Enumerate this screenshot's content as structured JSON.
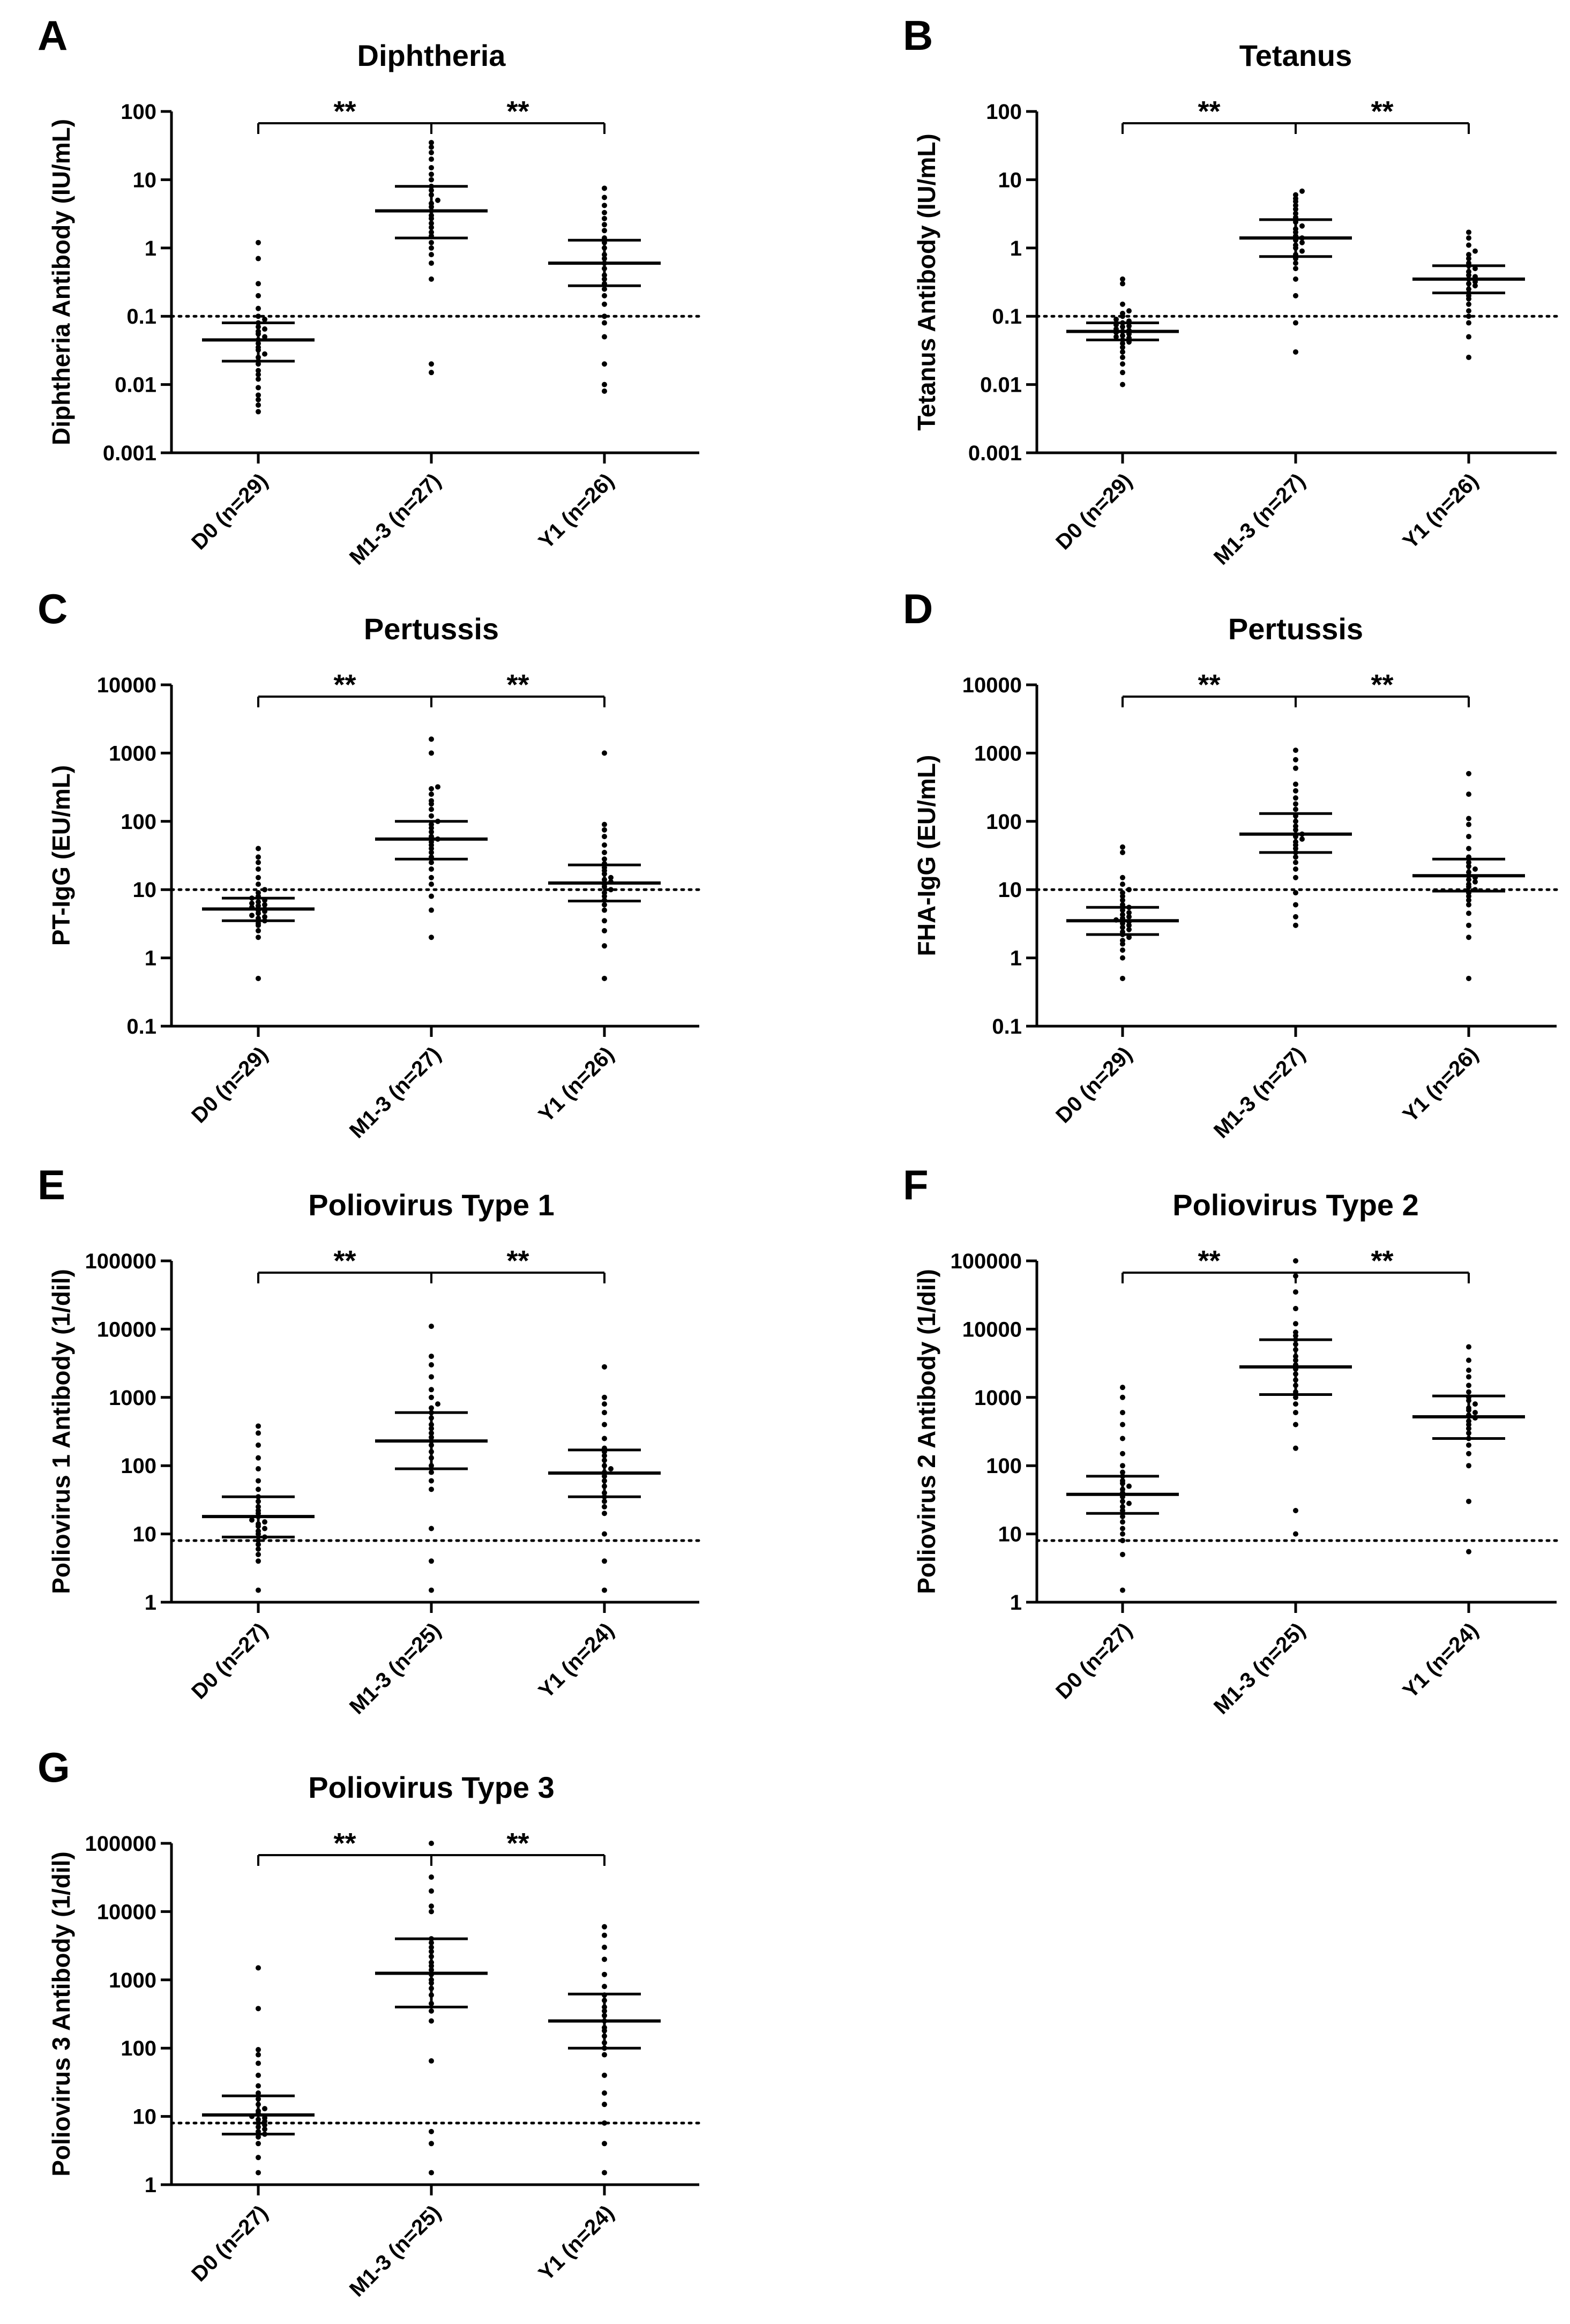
{
  "chart_data": [
    {
      "panel": "A",
      "type": "scatter",
      "title": "Diphtheria",
      "ylabel": "Diphtheria Antibody (IU/mL)",
      "yscale": "log",
      "ylim": [
        0.001,
        100
      ],
      "yticks": [
        "0.001",
        "0.01",
        "0.1",
        "1",
        "10",
        "100"
      ],
      "reference_line": 0.1,
      "categories": [
        "D0 (n=29)",
        "M1-3 (n=27)",
        "Y1 (n=26)"
      ],
      "groups": [
        {
          "mean": 0.045,
          "ci": [
            0.022,
            0.08
          ],
          "points": [
            0.004,
            0.005,
            0.006,
            0.007,
            0.009,
            0.012,
            0.014,
            0.016,
            0.02,
            0.022,
            0.025,
            0.028,
            0.032,
            0.035,
            0.04,
            0.045,
            0.05,
            0.055,
            0.06,
            0.065,
            0.07,
            0.08,
            0.09,
            0.1,
            0.13,
            0.2,
            0.3,
            0.7,
            1.2
          ]
        },
        {
          "mean": 3.5,
          "ci": [
            1.4,
            8
          ],
          "points": [
            0.015,
            0.02,
            0.35,
            0.6,
            0.8,
            1.0,
            1.2,
            1.5,
            1.7,
            2.0,
            2.3,
            2.7,
            3.0,
            3.5,
            4.0,
            4.5,
            5.0,
            6.0,
            7.0,
            8.0,
            10,
            12,
            15,
            20,
            25,
            30,
            35
          ]
        },
        {
          "mean": 0.6,
          "ci": [
            0.28,
            1.3
          ],
          "points": [
            0.008,
            0.01,
            0.02,
            0.05,
            0.08,
            0.1,
            0.15,
            0.2,
            0.25,
            0.3,
            0.35,
            0.4,
            0.5,
            0.6,
            0.7,
            0.8,
            1.0,
            1.2,
            1.4,
            1.8,
            2.2,
            2.7,
            3.3,
            4.2,
            5.5,
            7.5
          ]
        }
      ],
      "significance": [
        "**",
        "**"
      ]
    },
    {
      "panel": "B",
      "type": "scatter",
      "title": "Tetanus",
      "ylabel": "Tetanus Antibody (IU/mL)",
      "yscale": "log",
      "ylim": [
        0.001,
        100
      ],
      "yticks": [
        "0.001",
        "0.01",
        "0.1",
        "1",
        "10",
        "100"
      ],
      "reference_line": 0.1,
      "categories": [
        "D0 (n=29)",
        "M1-3 (n=27)",
        "Y1 (n=26)"
      ],
      "groups": [
        {
          "mean": 0.06,
          "ci": [
            0.045,
            0.08
          ],
          "points": [
            0.01,
            0.015,
            0.02,
            0.025,
            0.03,
            0.035,
            0.04,
            0.042,
            0.045,
            0.048,
            0.05,
            0.052,
            0.055,
            0.058,
            0.06,
            0.062,
            0.065,
            0.07,
            0.072,
            0.075,
            0.08,
            0.085,
            0.09,
            0.1,
            0.11,
            0.12,
            0.15,
            0.3,
            0.35
          ]
        },
        {
          "mean": 1.4,
          "ci": [
            0.75,
            2.6
          ],
          "points": [
            0.03,
            0.08,
            0.2,
            0.35,
            0.5,
            0.6,
            0.7,
            0.8,
            0.9,
            1.0,
            1.1,
            1.2,
            1.3,
            1.4,
            1.5,
            1.7,
            1.9,
            2.1,
            2.4,
            2.8,
            3.2,
            3.7,
            4.2,
            4.8,
            5.3,
            6.0,
            6.8
          ]
        },
        {
          "mean": 0.35,
          "ci": [
            0.22,
            0.55
          ],
          "points": [
            0.025,
            0.05,
            0.08,
            0.1,
            0.12,
            0.15,
            0.18,
            0.2,
            0.22,
            0.25,
            0.28,
            0.3,
            0.32,
            0.35,
            0.38,
            0.4,
            0.45,
            0.5,
            0.55,
            0.6,
            0.7,
            0.8,
            0.9,
            1.1,
            1.4,
            1.7
          ]
        }
      ],
      "significance": [
        "**",
        "**"
      ]
    },
    {
      "panel": "C",
      "type": "scatter",
      "title": "Pertussis",
      "ylabel": "PT-IgG (EU/mL)",
      "yscale": "log",
      "ylim": [
        0.1,
        10000
      ],
      "yticks": [
        "0.1",
        "1",
        "10",
        "100",
        "1000",
        "10000"
      ],
      "reference_line": 10,
      "categories": [
        "D0 (n=29)",
        "M1-3 (n=27)",
        "Y1 (n=26)"
      ],
      "groups": [
        {
          "mean": 5.2,
          "ci": [
            3.5,
            7.5
          ],
          "points": [
            0.5,
            2.0,
            2.5,
            3.0,
            3.2,
            3.5,
            3.8,
            4.0,
            4.2,
            4.5,
            4.8,
            5.0,
            5.2,
            5.5,
            5.8,
            6.0,
            6.3,
            6.6,
            7.0,
            7.5,
            8.0,
            9.0,
            10,
            12,
            15,
            20,
            25,
            30,
            40
          ]
        },
        {
          "mean": 55,
          "ci": [
            28,
            100
          ],
          "points": [
            2.0,
            5.0,
            8.0,
            12,
            15,
            20,
            25,
            30,
            35,
            40,
            45,
            50,
            55,
            60,
            70,
            80,
            90,
            100,
            120,
            150,
            180,
            200,
            250,
            300,
            320,
            1000,
            1600
          ]
        },
        {
          "mean": 12.5,
          "ci": [
            6.8,
            23
          ],
          "points": [
            0.5,
            1.5,
            2.5,
            3.5,
            5.0,
            6.0,
            7.0,
            8.0,
            9.0,
            10,
            11,
            12,
            13,
            14,
            15,
            17,
            19,
            21,
            24,
            28,
            35,
            45,
            60,
            75,
            90,
            1000
          ]
        }
      ],
      "significance": [
        "**",
        "**"
      ]
    },
    {
      "panel": "D",
      "type": "scatter",
      "title": "Pertussis",
      "ylabel": "FHA-IgG (EU/mL)",
      "yscale": "log",
      "ylim": [
        0.1,
        10000
      ],
      "yticks": [
        "0.1",
        "1",
        "10",
        "100",
        "1000",
        "10000"
      ],
      "reference_line": 10,
      "categories": [
        "D0 (n=29)",
        "M1-3 (n=27)",
        "Y1 (n=26)"
      ],
      "groups": [
        {
          "mean": 3.5,
          "ci": [
            2.2,
            5.5
          ],
          "points": [
            0.5,
            1.0,
            1.3,
            1.6,
            1.8,
            2.0,
            2.2,
            2.4,
            2.6,
            2.8,
            3.0,
            3.2,
            3.4,
            3.6,
            3.8,
            4.0,
            4.3,
            4.6,
            5.0,
            5.5,
            6.0,
            7.0,
            8.0,
            9.0,
            10,
            12,
            15,
            35,
            42
          ]
        },
        {
          "mean": 65,
          "ci": [
            35,
            130
          ],
          "points": [
            3.0,
            4.0,
            6.0,
            9.0,
            15,
            20,
            25,
            30,
            35,
            40,
            45,
            50,
            55,
            60,
            65,
            75,
            85,
            100,
            120,
            150,
            180,
            220,
            280,
            350,
            600,
            800,
            1100
          ]
        },
        {
          "mean": 16,
          "ci": [
            9.5,
            28
          ],
          "points": [
            0.5,
            2.0,
            3.0,
            4.5,
            6.0,
            7.0,
            8.0,
            9.0,
            10,
            11,
            12,
            13,
            14,
            15,
            16,
            18,
            20,
            22,
            25,
            30,
            40,
            60,
            90,
            110,
            250,
            500
          ]
        }
      ],
      "significance": [
        "**",
        "**"
      ]
    },
    {
      "panel": "E",
      "type": "scatter",
      "title": "Poliovirus Type 1",
      "ylabel": "Poliovirus 1 Antibody (1/dil)",
      "yscale": "log",
      "ylim": [
        1,
        100000
      ],
      "yticks": [
        "1",
        "10",
        "100",
        "1000",
        "10000",
        "100000"
      ],
      "reference_line": 8,
      "categories": [
        "D0 (n=27)",
        "M1-3 (n=25)",
        "Y1 (n=24)"
      ],
      "groups": [
        {
          "mean": 18,
          "ci": [
            9,
            35
          ],
          "points": [
            1.5,
            4.0,
            5.0,
            6.0,
            7.0,
            8.0,
            9.0,
            10,
            11,
            12,
            13,
            14,
            15,
            16,
            18,
            20,
            22,
            25,
            30,
            35,
            45,
            60,
            90,
            130,
            200,
            300,
            380
          ]
        },
        {
          "mean": 230,
          "ci": [
            90,
            600
          ],
          "points": [
            1.5,
            4.0,
            12,
            45,
            60,
            80,
            100,
            130,
            160,
            200,
            230,
            260,
            300,
            350,
            400,
            500,
            600,
            700,
            800,
            1000,
            1300,
            2000,
            3000,
            4000,
            11000
          ]
        },
        {
          "mean": 78,
          "ci": [
            35,
            170
          ],
          "points": [
            1.5,
            4.0,
            10,
            20,
            25,
            30,
            35,
            40,
            50,
            60,
            70,
            80,
            90,
            100,
            120,
            140,
            160,
            180,
            250,
            400,
            600,
            800,
            1000,
            2800
          ]
        }
      ],
      "significance": [
        "**",
        "**"
      ]
    },
    {
      "panel": "F",
      "type": "scatter",
      "title": "Poliovirus Type 2",
      "ylabel": "Poliovirus 2 Antibody (1/dil)",
      "yscale": "log",
      "ylim": [
        1,
        100000
      ],
      "yticks": [
        "1",
        "10",
        "100",
        "1000",
        "10000",
        "100000"
      ],
      "reference_line": 8,
      "categories": [
        "D0 (n=27)",
        "M1-3 (n=25)",
        "Y1 (n=24)"
      ],
      "groups": [
        {
          "mean": 38,
          "ci": [
            20,
            70
          ],
          "points": [
            1.5,
            5.0,
            8.0,
            10,
            12,
            15,
            18,
            20,
            22,
            25,
            28,
            30,
            35,
            40,
            45,
            50,
            55,
            60,
            70,
            80,
            100,
            150,
            250,
            400,
            600,
            1000,
            1400
          ]
        },
        {
          "mean": 2800,
          "ci": [
            1100,
            7000
          ],
          "points": [
            10,
            22,
            180,
            400,
            600,
            800,
            1000,
            1200,
            1500,
            1800,
            2200,
            2600,
            3000,
            3500,
            4000,
            5000,
            6000,
            7000,
            8000,
            9000,
            12000,
            20000,
            35000,
            60000,
            100000
          ]
        },
        {
          "mean": 520,
          "ci": [
            250,
            1050
          ],
          "points": [
            5.5,
            30,
            100,
            150,
            200,
            250,
            300,
            350,
            400,
            450,
            500,
            550,
            600,
            650,
            700,
            800,
            900,
            1000,
            1200,
            1500,
            2000,
            2500,
            3500,
            5500
          ]
        }
      ],
      "significance": [
        "**",
        "**"
      ]
    },
    {
      "panel": "G",
      "type": "scatter",
      "title": "Poliovirus Type 3",
      "ylabel": "Poliovirus 3 Antibody (1/dil)",
      "yscale": "log",
      "ylim": [
        1,
        100000
      ],
      "yticks": [
        "1",
        "10",
        "100",
        "1000",
        "10000",
        "100000"
      ],
      "reference_line": 8,
      "categories": [
        "D0 (n=27)",
        "M1-3 (n=25)",
        "Y1 (n=24)"
      ],
      "groups": [
        {
          "mean": 10.5,
          "ci": [
            5.5,
            20
          ],
          "points": [
            1.5,
            2.5,
            4.0,
            5.0,
            5.5,
            6.0,
            6.5,
            7.0,
            7.5,
            8.0,
            8.5,
            9.0,
            9.5,
            10,
            11,
            12,
            13,
            15,
            18,
            22,
            28,
            40,
            60,
            80,
            95,
            380,
            1500
          ]
        },
        {
          "mean": 1250,
          "ci": [
            400,
            4000
          ],
          "points": [
            1.5,
            4.0,
            6.0,
            65,
            250,
            350,
            450,
            600,
            750,
            900,
            1000,
            1200,
            1400,
            1600,
            1800,
            2200,
            2600,
            3000,
            3500,
            4000,
            10000,
            12000,
            20000,
            32000,
            100000
          ]
        },
        {
          "mean": 250,
          "ci": [
            100,
            620
          ],
          "points": [
            1.5,
            4.0,
            8.0,
            15,
            22,
            40,
            80,
            100,
            120,
            150,
            180,
            200,
            250,
            300,
            350,
            400,
            500,
            600,
            800,
            1200,
            2000,
            3000,
            4500,
            6000
          ]
        }
      ],
      "significance": [
        "**",
        "**"
      ]
    }
  ]
}
